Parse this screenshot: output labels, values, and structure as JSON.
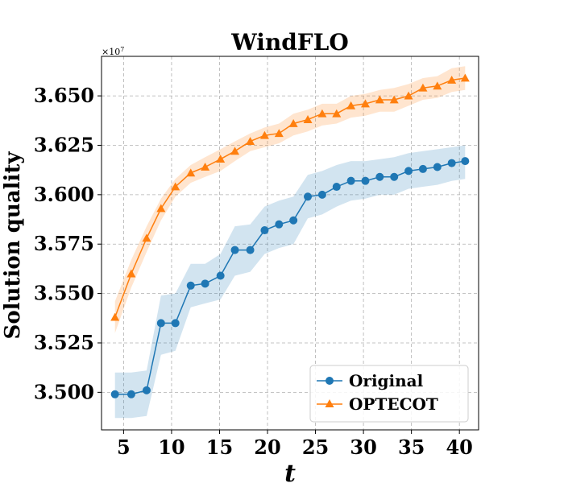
{
  "chart_data": {
    "type": "line",
    "title": "WindFLO",
    "xlabel": "t",
    "ylabel": "Solution quality",
    "y_offset_label": "×10",
    "y_offset_exp": "7",
    "xlim": [
      2.7,
      42.0
    ],
    "ylim": [
      3.481,
      3.67
    ],
    "xticks": [
      5,
      10,
      15,
      20,
      25,
      30,
      35,
      40
    ],
    "xtick_labels": [
      "5",
      "10",
      "15",
      "20",
      "25",
      "30",
      "35",
      "40"
    ],
    "yticks": [
      3.5,
      3.525,
      3.55,
      3.575,
      3.6,
      3.625,
      3.65
    ],
    "ytick_labels": [
      "3.500",
      "3.525",
      "3.550",
      "3.575",
      "3.600",
      "3.625",
      "3.650"
    ],
    "grid": true,
    "legend_position": "lower-right",
    "series": [
      {
        "name": "Original",
        "color": "#1f77b4",
        "band_color": "#1f77b4",
        "marker": "circle",
        "x": [
          4.1,
          5.8,
          7.4,
          8.9,
          10.4,
          12.0,
          13.5,
          15.1,
          16.6,
          18.2,
          19.7,
          21.2,
          22.7,
          24.2,
          25.7,
          27.2,
          28.7,
          30.2,
          31.7,
          33.2,
          34.7,
          36.2,
          37.7,
          39.2,
          40.6
        ],
        "y": [
          3.499,
          3.499,
          3.501,
          3.535,
          3.535,
          3.554,
          3.555,
          3.559,
          3.572,
          3.572,
          3.582,
          3.585,
          3.587,
          3.599,
          3.6,
          3.604,
          3.607,
          3.607,
          3.609,
          3.609,
          3.612,
          3.613,
          3.614,
          3.616,
          3.617
        ],
        "lower": [
          3.487,
          3.487,
          3.488,
          3.519,
          3.521,
          3.543,
          3.545,
          3.547,
          3.559,
          3.561,
          3.57,
          3.573,
          3.575,
          3.588,
          3.59,
          3.594,
          3.597,
          3.598,
          3.6,
          3.6,
          3.603,
          3.604,
          3.605,
          3.607,
          3.608
        ],
        "upper": [
          3.51,
          3.51,
          3.511,
          3.549,
          3.55,
          3.565,
          3.565,
          3.57,
          3.584,
          3.585,
          3.594,
          3.597,
          3.599,
          3.61,
          3.612,
          3.615,
          3.617,
          3.617,
          3.618,
          3.619,
          3.621,
          3.622,
          3.623,
          3.624,
          3.625
        ]
      },
      {
        "name": "OPTECOT",
        "color": "#ff7f0e",
        "band_color": "#ff7f0e",
        "marker": "triangle",
        "x": [
          4.1,
          5.8,
          7.4,
          8.9,
          10.4,
          12.0,
          13.5,
          15.1,
          16.6,
          18.2,
          19.7,
          21.2,
          22.7,
          24.2,
          25.7,
          27.2,
          28.7,
          30.2,
          31.7,
          33.2,
          34.7,
          36.2,
          37.7,
          39.2,
          40.6
        ],
        "y": [
          3.538,
          3.56,
          3.578,
          3.593,
          3.604,
          3.611,
          3.614,
          3.618,
          3.622,
          3.627,
          3.63,
          3.631,
          3.636,
          3.638,
          3.641,
          3.641,
          3.645,
          3.646,
          3.648,
          3.648,
          3.65,
          3.654,
          3.655,
          3.658,
          3.659
        ],
        "lower": [
          3.53,
          3.553,
          3.571,
          3.587,
          3.599,
          3.606,
          3.609,
          3.612,
          3.617,
          3.622,
          3.624,
          3.626,
          3.63,
          3.632,
          3.635,
          3.636,
          3.639,
          3.64,
          3.642,
          3.642,
          3.645,
          3.648,
          3.649,
          3.652,
          3.653
        ],
        "upper": [
          3.546,
          3.567,
          3.584,
          3.598,
          3.608,
          3.615,
          3.619,
          3.623,
          3.627,
          3.631,
          3.634,
          3.636,
          3.641,
          3.643,
          3.646,
          3.646,
          3.65,
          3.651,
          3.653,
          3.654,
          3.656,
          3.659,
          3.66,
          3.664,
          3.665
        ]
      }
    ]
  }
}
